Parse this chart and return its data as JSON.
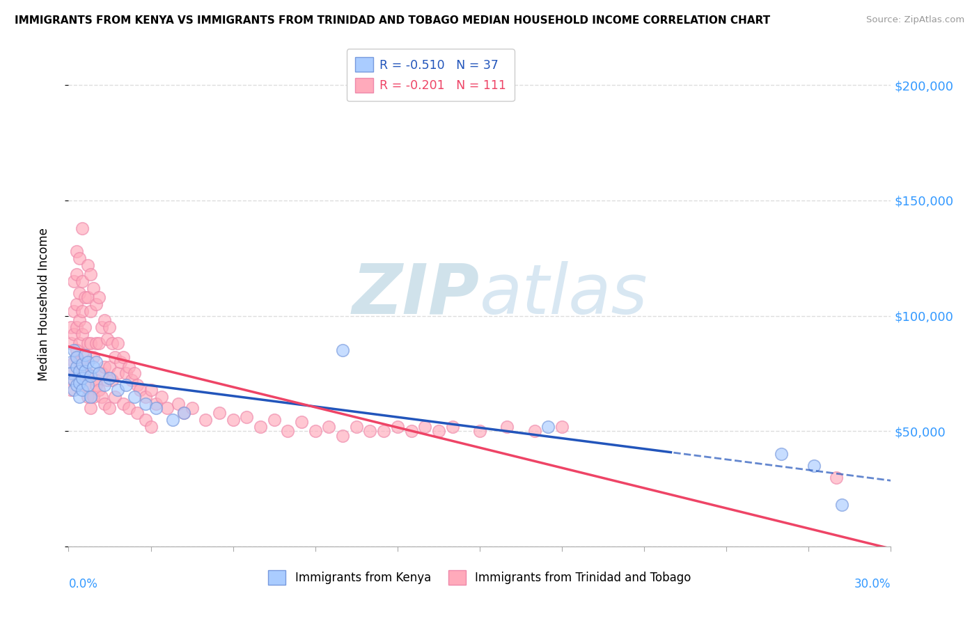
{
  "title": "IMMIGRANTS FROM KENYA VS IMMIGRANTS FROM TRINIDAD AND TOBAGO MEDIAN HOUSEHOLD INCOME CORRELATION CHART",
  "source": "Source: ZipAtlas.com",
  "ylabel": "Median Household Income",
  "xlim": [
    0.0,
    0.3
  ],
  "ylim": [
    0,
    210000
  ],
  "kenya_R": -0.51,
  "kenya_N": 37,
  "tt_R": -0.201,
  "tt_N": 111,
  "kenya_color": "#aaccff",
  "tt_color": "#ffaabb",
  "kenya_line_color": "#2255bb",
  "tt_line_color": "#ee4466",
  "kenya_edge": "#7799dd",
  "tt_edge": "#ee88aa",
  "watermark_color": "#cce8f4",
  "yticks": [
    0,
    50000,
    100000,
    150000,
    200000
  ],
  "ytick_labels": [
    "",
    "$50,000",
    "$100,000",
    "$150,000",
    "$200,000"
  ],
  "xticks": [
    0.0,
    0.03,
    0.06,
    0.09,
    0.12,
    0.15,
    0.18,
    0.21,
    0.24,
    0.27,
    0.3
  ],
  "grid_color": "#dddddd",
  "background_color": "#ffffff",
  "title_fontsize": 11,
  "axis_label_color": "#3399ff",
  "right_ytick_color": "#3399ff",
  "kenya_x": [
    0.001,
    0.001,
    0.002,
    0.002,
    0.002,
    0.003,
    0.003,
    0.003,
    0.004,
    0.004,
    0.004,
    0.005,
    0.005,
    0.005,
    0.006,
    0.006,
    0.007,
    0.007,
    0.008,
    0.008,
    0.009,
    0.01,
    0.011,
    0.013,
    0.015,
    0.018,
    0.021,
    0.024,
    0.028,
    0.032,
    0.038,
    0.042,
    0.1,
    0.175,
    0.26,
    0.272,
    0.282
  ],
  "kenya_y": [
    80000,
    75000,
    85000,
    72000,
    68000,
    78000,
    82000,
    70000,
    76000,
    65000,
    71000,
    79000,
    68000,
    73000,
    83000,
    76000,
    80000,
    70000,
    74000,
    65000,
    78000,
    80000,
    75000,
    70000,
    73000,
    68000,
    70000,
    65000,
    62000,
    60000,
    55000,
    58000,
    85000,
    52000,
    40000,
    35000,
    18000
  ],
  "tt_x": [
    0.001,
    0.001,
    0.001,
    0.002,
    0.002,
    0.002,
    0.002,
    0.003,
    0.003,
    0.003,
    0.003,
    0.003,
    0.004,
    0.004,
    0.004,
    0.004,
    0.005,
    0.005,
    0.005,
    0.005,
    0.005,
    0.006,
    0.006,
    0.006,
    0.007,
    0.007,
    0.007,
    0.007,
    0.008,
    0.008,
    0.008,
    0.009,
    0.009,
    0.01,
    0.01,
    0.01,
    0.011,
    0.011,
    0.012,
    0.012,
    0.013,
    0.013,
    0.014,
    0.014,
    0.015,
    0.015,
    0.016,
    0.016,
    0.017,
    0.018,
    0.018,
    0.019,
    0.02,
    0.021,
    0.022,
    0.023,
    0.024,
    0.025,
    0.026,
    0.028,
    0.03,
    0.032,
    0.034,
    0.036,
    0.04,
    0.042,
    0.045,
    0.05,
    0.055,
    0.06,
    0.065,
    0.07,
    0.075,
    0.08,
    0.085,
    0.09,
    0.095,
    0.1,
    0.105,
    0.11,
    0.115,
    0.12,
    0.125,
    0.13,
    0.135,
    0.14,
    0.15,
    0.16,
    0.17,
    0.18,
    0.001,
    0.002,
    0.003,
    0.004,
    0.005,
    0.006,
    0.007,
    0.008,
    0.009,
    0.01,
    0.011,
    0.012,
    0.013,
    0.015,
    0.017,
    0.02,
    0.022,
    0.025,
    0.028,
    0.03,
    0.28
  ],
  "tt_y": [
    75000,
    88000,
    95000,
    80000,
    92000,
    102000,
    115000,
    95000,
    105000,
    118000,
    128000,
    82000,
    110000,
    98000,
    88000,
    125000,
    115000,
    102000,
    92000,
    78000,
    138000,
    108000,
    95000,
    82000,
    122000,
    108000,
    88000,
    75000,
    118000,
    102000,
    88000,
    112000,
    82000,
    105000,
    88000,
    72000,
    108000,
    88000,
    95000,
    75000,
    98000,
    78000,
    90000,
    72000,
    95000,
    78000,
    88000,
    72000,
    82000,
    88000,
    75000,
    80000,
    82000,
    75000,
    78000,
    72000,
    75000,
    70000,
    68000,
    65000,
    68000,
    62000,
    65000,
    60000,
    62000,
    58000,
    60000,
    55000,
    58000,
    55000,
    56000,
    52000,
    55000,
    50000,
    54000,
    50000,
    52000,
    48000,
    52000,
    50000,
    50000,
    52000,
    50000,
    52000,
    50000,
    52000,
    50000,
    52000,
    50000,
    52000,
    68000,
    72000,
    85000,
    80000,
    75000,
    70000,
    65000,
    60000,
    65000,
    70000,
    68000,
    65000,
    62000,
    60000,
    65000,
    62000,
    60000,
    58000,
    55000,
    52000,
    30000
  ]
}
